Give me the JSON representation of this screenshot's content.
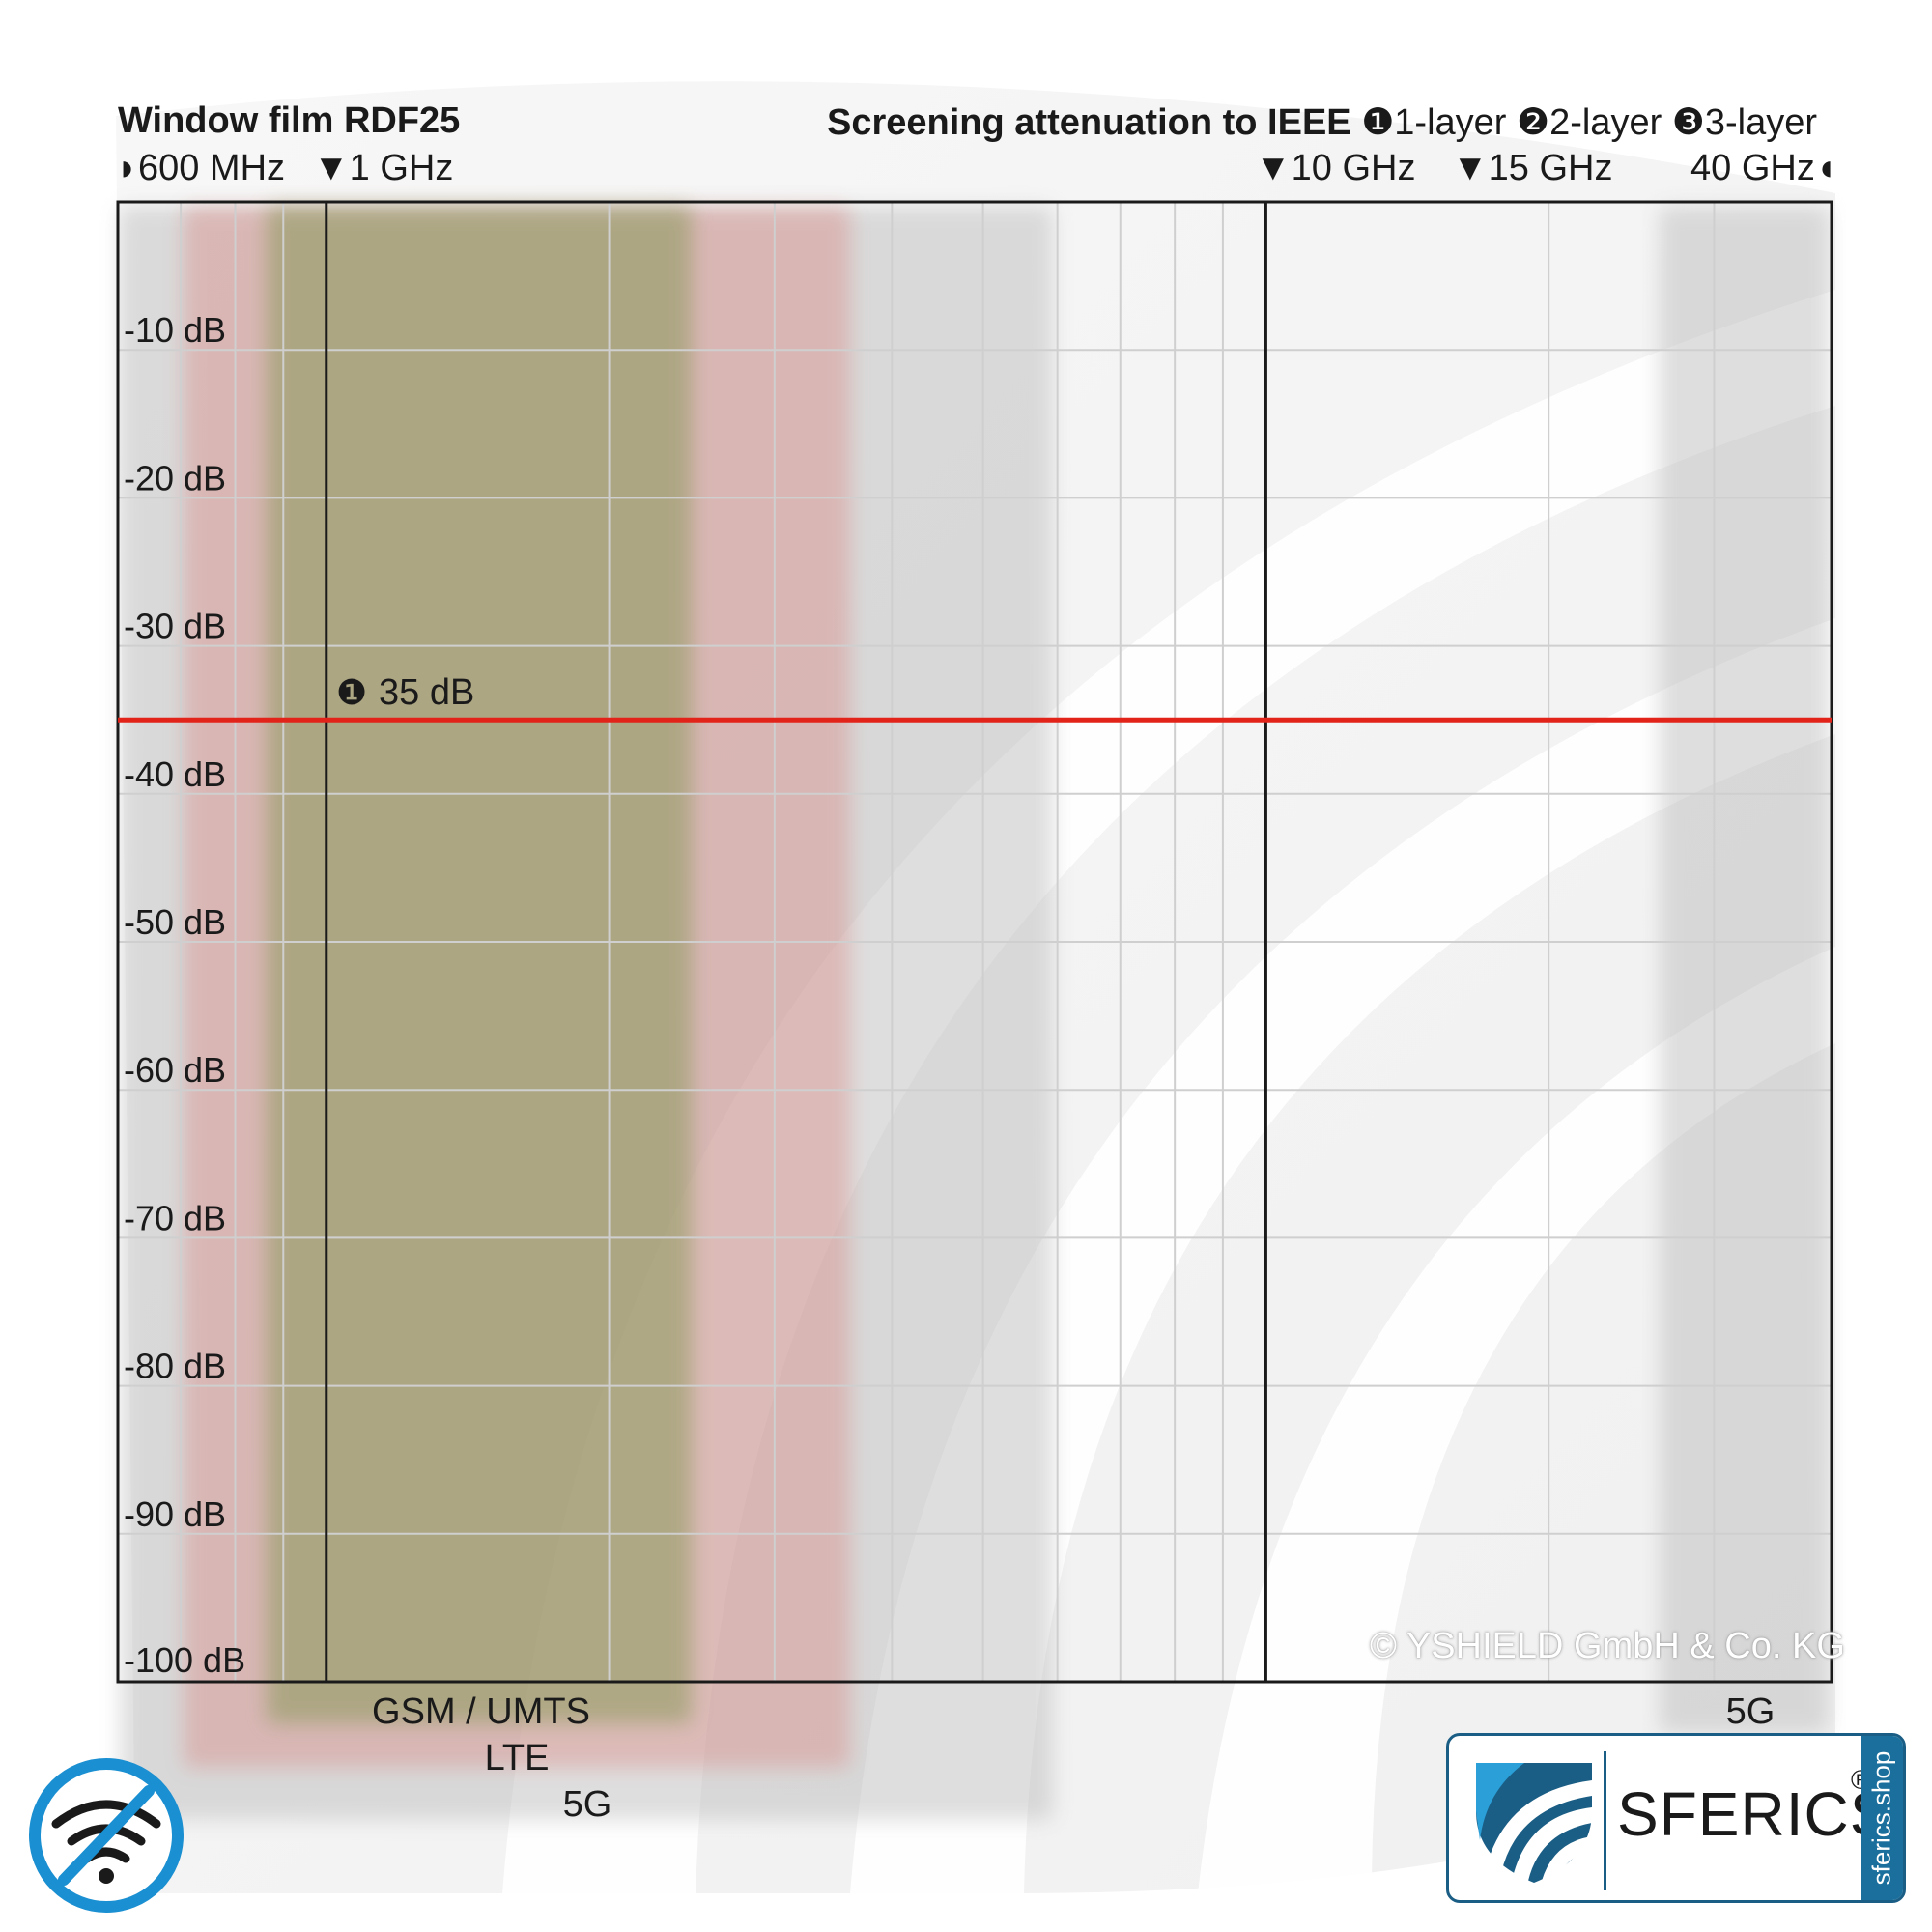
{
  "header": {
    "product": "Window film RDF25",
    "screening_title": "Screening attenuation to IEEE",
    "layers": [
      {
        "num": "❶",
        "label": "1-layer"
      },
      {
        "num": "❷",
        "label": "2-layer"
      },
      {
        "num": "❸",
        "label": "3-layer"
      }
    ],
    "freq_markers": [
      {
        "glyph": "◗",
        "label": "600 MHz"
      },
      {
        "glyph": "▼",
        "label": "1 GHz"
      },
      {
        "glyph": "▼",
        "label": "10 GHz"
      },
      {
        "glyph": "▼",
        "label": "15 GHz"
      },
      {
        "glyph": "◖",
        "label": "40 GHz"
      }
    ]
  },
  "chart_data": {
    "type": "line",
    "title": "Window film RDF25",
    "xscale": "log",
    "xlim": [
      "600 MHz",
      "40 GHz"
    ],
    "ylim": [
      -100,
      0
    ],
    "y_ticks": [
      "-10 dB",
      "-20 dB",
      "-30 dB",
      "-40 dB",
      "-50 dB",
      "-60 dB",
      "-70 dB",
      "-80 dB",
      "-90 dB",
      "-100 dB"
    ],
    "grid": true,
    "series": [
      {
        "name": "1-layer",
        "marker": "❶",
        "label": "35 dB",
        "value": -35,
        "color": "#e2231a"
      }
    ],
    "bands": [
      {
        "label": "GSM / UMTS",
        "color": "#8a9a5b"
      },
      {
        "label": "LTE",
        "color": "#d9807a"
      },
      {
        "label": "5G",
        "color": "#b8b8b8"
      },
      {
        "label": "5G",
        "color": "#b8b8b8"
      }
    ]
  },
  "footer": {
    "copyright": "© YSHIELD GmbH & Co. KG",
    "logo_brand": "SFERICS",
    "logo_reg": "®",
    "logo_side": "sferics.shop"
  },
  "icons": [
    "no-wifi-icon",
    "sferics-shield-icon"
  ]
}
